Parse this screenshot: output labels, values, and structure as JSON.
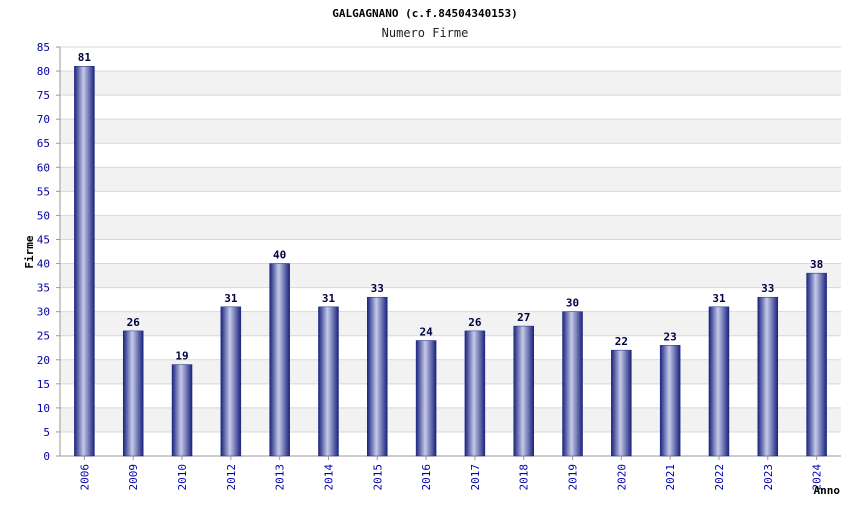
{
  "chart_data": {
    "type": "bar",
    "title": "GALGAGNANO (c.f.84504340153)",
    "subtitle": "Numero Firme",
    "xlabel": "Anno",
    "ylabel": "Firme",
    "ylim": [
      0,
      85
    ],
    "yticks": [
      0,
      5,
      10,
      15,
      20,
      25,
      30,
      35,
      40,
      45,
      50,
      55,
      60,
      65,
      70,
      75,
      80,
      85
    ],
    "grid": true,
    "categories": [
      "2006",
      "2009",
      "2010",
      "2012",
      "2013",
      "2014",
      "2015",
      "2016",
      "2017",
      "2018",
      "2019",
      "2020",
      "2021",
      "2022",
      "2023",
      "2024"
    ],
    "values": [
      81,
      26,
      19,
      31,
      40,
      31,
      33,
      24,
      26,
      27,
      30,
      22,
      23,
      31,
      33,
      38
    ]
  },
  "colors": {
    "bar_dark": "#1a237e",
    "bar_light": "#c5cae9",
    "tick_label": "#0000aa",
    "data_label": "#000040",
    "band": "#f2f2f2",
    "grid": "#d8d8d8"
  }
}
